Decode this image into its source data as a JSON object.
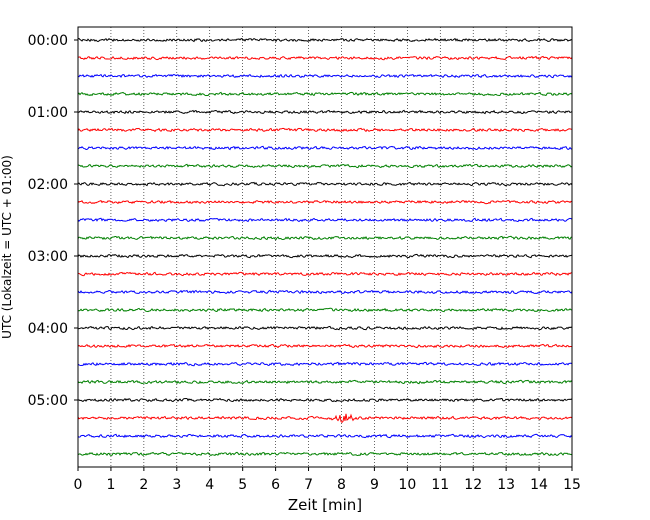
{
  "chart_data": {
    "type": "line",
    "title": "",
    "xlabel": "Zeit  [min]",
    "ylabel": "UTC (Lokalzeit = UTC + 01:00)",
    "xlim": [
      0,
      15
    ],
    "x_ticks": [
      "0",
      "1",
      "2",
      "3",
      "4",
      "5",
      "6",
      "7",
      "8",
      "9",
      "10",
      "11",
      "12",
      "13",
      "14",
      "15"
    ],
    "y_ticks": [
      "00:00",
      "01:00",
      "02:00",
      "03:00",
      "04:00",
      "05:00"
    ],
    "grid": "vertical-dotted",
    "trace_interval_min": 15,
    "trace_count": 24,
    "color_cycle": [
      "#000000",
      "#ff0000",
      "#0000ff",
      "#008000"
    ],
    "events": [
      {
        "trace_start": "05:15",
        "minute": 8.1,
        "note": "larger burst"
      }
    ]
  }
}
